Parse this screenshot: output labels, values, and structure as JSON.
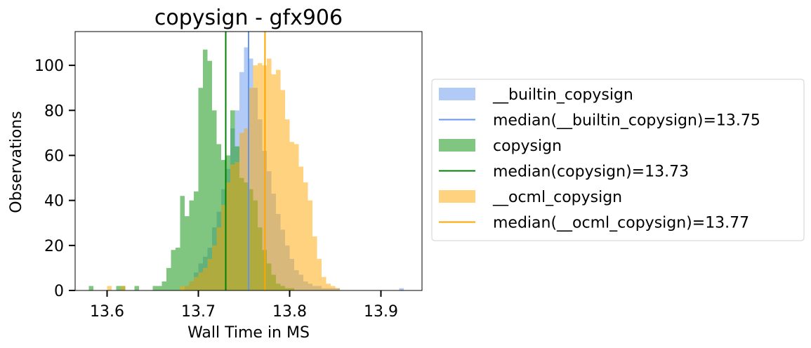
{
  "chart_data": {
    "type": "histogram",
    "title": "copysign - gfx906",
    "xlabel": "Wall Time in MS",
    "ylabel": "Observations",
    "xlim": [
      13.565,
      13.945
    ],
    "ylim": [
      0,
      115
    ],
    "xticks": [
      13.6,
      13.7,
      13.8,
      13.9
    ],
    "yticks": [
      0,
      20,
      40,
      60,
      80,
      100
    ],
    "bin_width": 0.005,
    "legend_position": "outside-right",
    "series": [
      {
        "name": "__builtin_copysign",
        "color": "#6495ed",
        "alpha": 0.5,
        "bin_starts": [
          13.685,
          13.69,
          13.695,
          13.7,
          13.705,
          13.71,
          13.715,
          13.72,
          13.725,
          13.73,
          13.735,
          13.74,
          13.745,
          13.75,
          13.755,
          13.76,
          13.765,
          13.77,
          13.775,
          13.78,
          13.785,
          13.79,
          13.795,
          13.8,
          13.805,
          13.81,
          13.815,
          13.82,
          13.825,
          13.83,
          13.835,
          13.84,
          13.845,
          13.85,
          13.855,
          13.86,
          13.865,
          13.87,
          13.875,
          13.88,
          13.885,
          13.89,
          13.895,
          13.9,
          13.905,
          13.91,
          13.915,
          13.92
        ],
        "counts": [
          2,
          4,
          8,
          12,
          15,
          19,
          28,
          35,
          45,
          54,
          72,
          80,
          97,
          108,
          103,
          90,
          76,
          62,
          53,
          43,
          34,
          27,
          20,
          14,
          9,
          7,
          4,
          3,
          2,
          2,
          1,
          1,
          1,
          1,
          0,
          0,
          0,
          0,
          0,
          0,
          0,
          0,
          0,
          0,
          0,
          0,
          0,
          1
        ]
      },
      {
        "name": "copysign",
        "color": "#2ca02c",
        "alpha": 0.6,
        "bin_starts": [
          13.58,
          13.585,
          13.59,
          13.595,
          13.6,
          13.605,
          13.61,
          13.615,
          13.62,
          13.625,
          13.63,
          13.635,
          13.64,
          13.645,
          13.65,
          13.655,
          13.66,
          13.665,
          13.67,
          13.675,
          13.68,
          13.685,
          13.69,
          13.695,
          13.7,
          13.705,
          13.71,
          13.715,
          13.72,
          13.725,
          13.73,
          13.735,
          13.74,
          13.745,
          13.75,
          13.755,
          13.76,
          13.765,
          13.77,
          13.775,
          13.78,
          13.785,
          13.79,
          13.795,
          13.8
        ],
        "counts": [
          2,
          0,
          0,
          0,
          0,
          0,
          2,
          2,
          0,
          0,
          2,
          0,
          0,
          0,
          2,
          2,
          4,
          10,
          18,
          19,
          42,
          33,
          40,
          44,
          90,
          107,
          102,
          80,
          65,
          58,
          60,
          80,
          64,
          50,
          48,
          45,
          40,
          28,
          18,
          12,
          7,
          3,
          2,
          1,
          1
        ]
      },
      {
        "name": "__ocml_copysign",
        "color": "#ffa500",
        "alpha": 0.5,
        "bin_starts": [
          13.6,
          13.605,
          13.61,
          13.615,
          13.62,
          13.625,
          13.63,
          13.635,
          13.64,
          13.645,
          13.65,
          13.655,
          13.66,
          13.665,
          13.67,
          13.675,
          13.68,
          13.685,
          13.69,
          13.695,
          13.7,
          13.705,
          13.71,
          13.715,
          13.72,
          13.725,
          13.73,
          13.735,
          13.74,
          13.745,
          13.75,
          13.755,
          13.76,
          13.765,
          13.77,
          13.775,
          13.78,
          13.785,
          13.79,
          13.795,
          13.8,
          13.805,
          13.81,
          13.815,
          13.82,
          13.825,
          13.83,
          13.835,
          13.84,
          13.845,
          13.85
        ],
        "counts": [
          2,
          0,
          0,
          2,
          0,
          0,
          0,
          0,
          0,
          0,
          0,
          0,
          0,
          0,
          0,
          0,
          2,
          2,
          4,
          6,
          8,
          10,
          14,
          20,
          28,
          38,
          48,
          56,
          57,
          70,
          72,
          90,
          100,
          101,
          100,
          103,
          96,
          98,
          89,
          76,
          66,
          65,
          55,
          48,
          40,
          24,
          14,
          6,
          3,
          2,
          1
        ]
      }
    ],
    "medians": [
      {
        "label": "median(__builtin_copysign)=13.75",
        "value": 13.755,
        "color": "#6495ed"
      },
      {
        "label": "median(copysign)=13.73",
        "value": 13.73,
        "color": "#008000"
      },
      {
        "label": "median(__ocml_copysign)=13.77",
        "value": 13.773,
        "color": "#ffa500"
      }
    ]
  },
  "legend": {
    "items": [
      {
        "label": "__builtin_copysign",
        "kind": "patch",
        "color": "#6495ed",
        "alpha": 0.5
      },
      {
        "label": "median(__builtin_copysign)=13.75",
        "kind": "line",
        "color": "#6495ed"
      },
      {
        "label": "copysign",
        "kind": "patch",
        "color": "#2ca02c",
        "alpha": 0.6
      },
      {
        "label": "median(copysign)=13.73",
        "kind": "line",
        "color": "#008000"
      },
      {
        "label": "__ocml_copysign",
        "kind": "patch",
        "color": "#ffa500",
        "alpha": 0.5
      },
      {
        "label": "median(__ocml_copysign)=13.77",
        "kind": "line",
        "color": "#ffa500"
      }
    ]
  }
}
